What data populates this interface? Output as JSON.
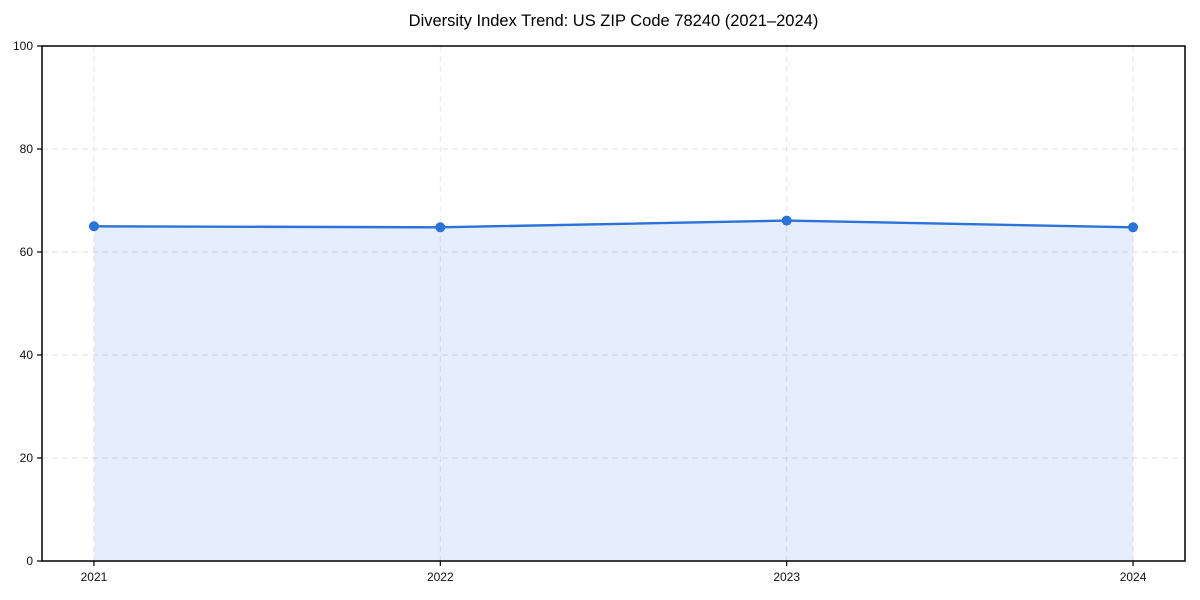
{
  "chart_data": {
    "type": "area",
    "title": "Diversity Index Trend: US ZIP Code 78240 (2021–2024)",
    "x": [
      2021,
      2022,
      2023,
      2024
    ],
    "xticks": [
      2021,
      2022,
      2023,
      2024
    ],
    "yticks": [
      0,
      20,
      40,
      60,
      80,
      100
    ],
    "ylim": [
      0,
      100
    ],
    "xlabel": "",
    "ylabel": "",
    "grid": "dashed-horizontal-and-vertical",
    "legend": "none",
    "series": [
      {
        "name": "Diversity Index",
        "values": [
          65.0,
          64.8,
          66.1,
          64.8
        ]
      }
    ],
    "line_color": "#2b72d9",
    "fill_color": "#2b72d9",
    "fill_opacity": 0.12,
    "marker": "circle",
    "border_color": "#000000"
  }
}
